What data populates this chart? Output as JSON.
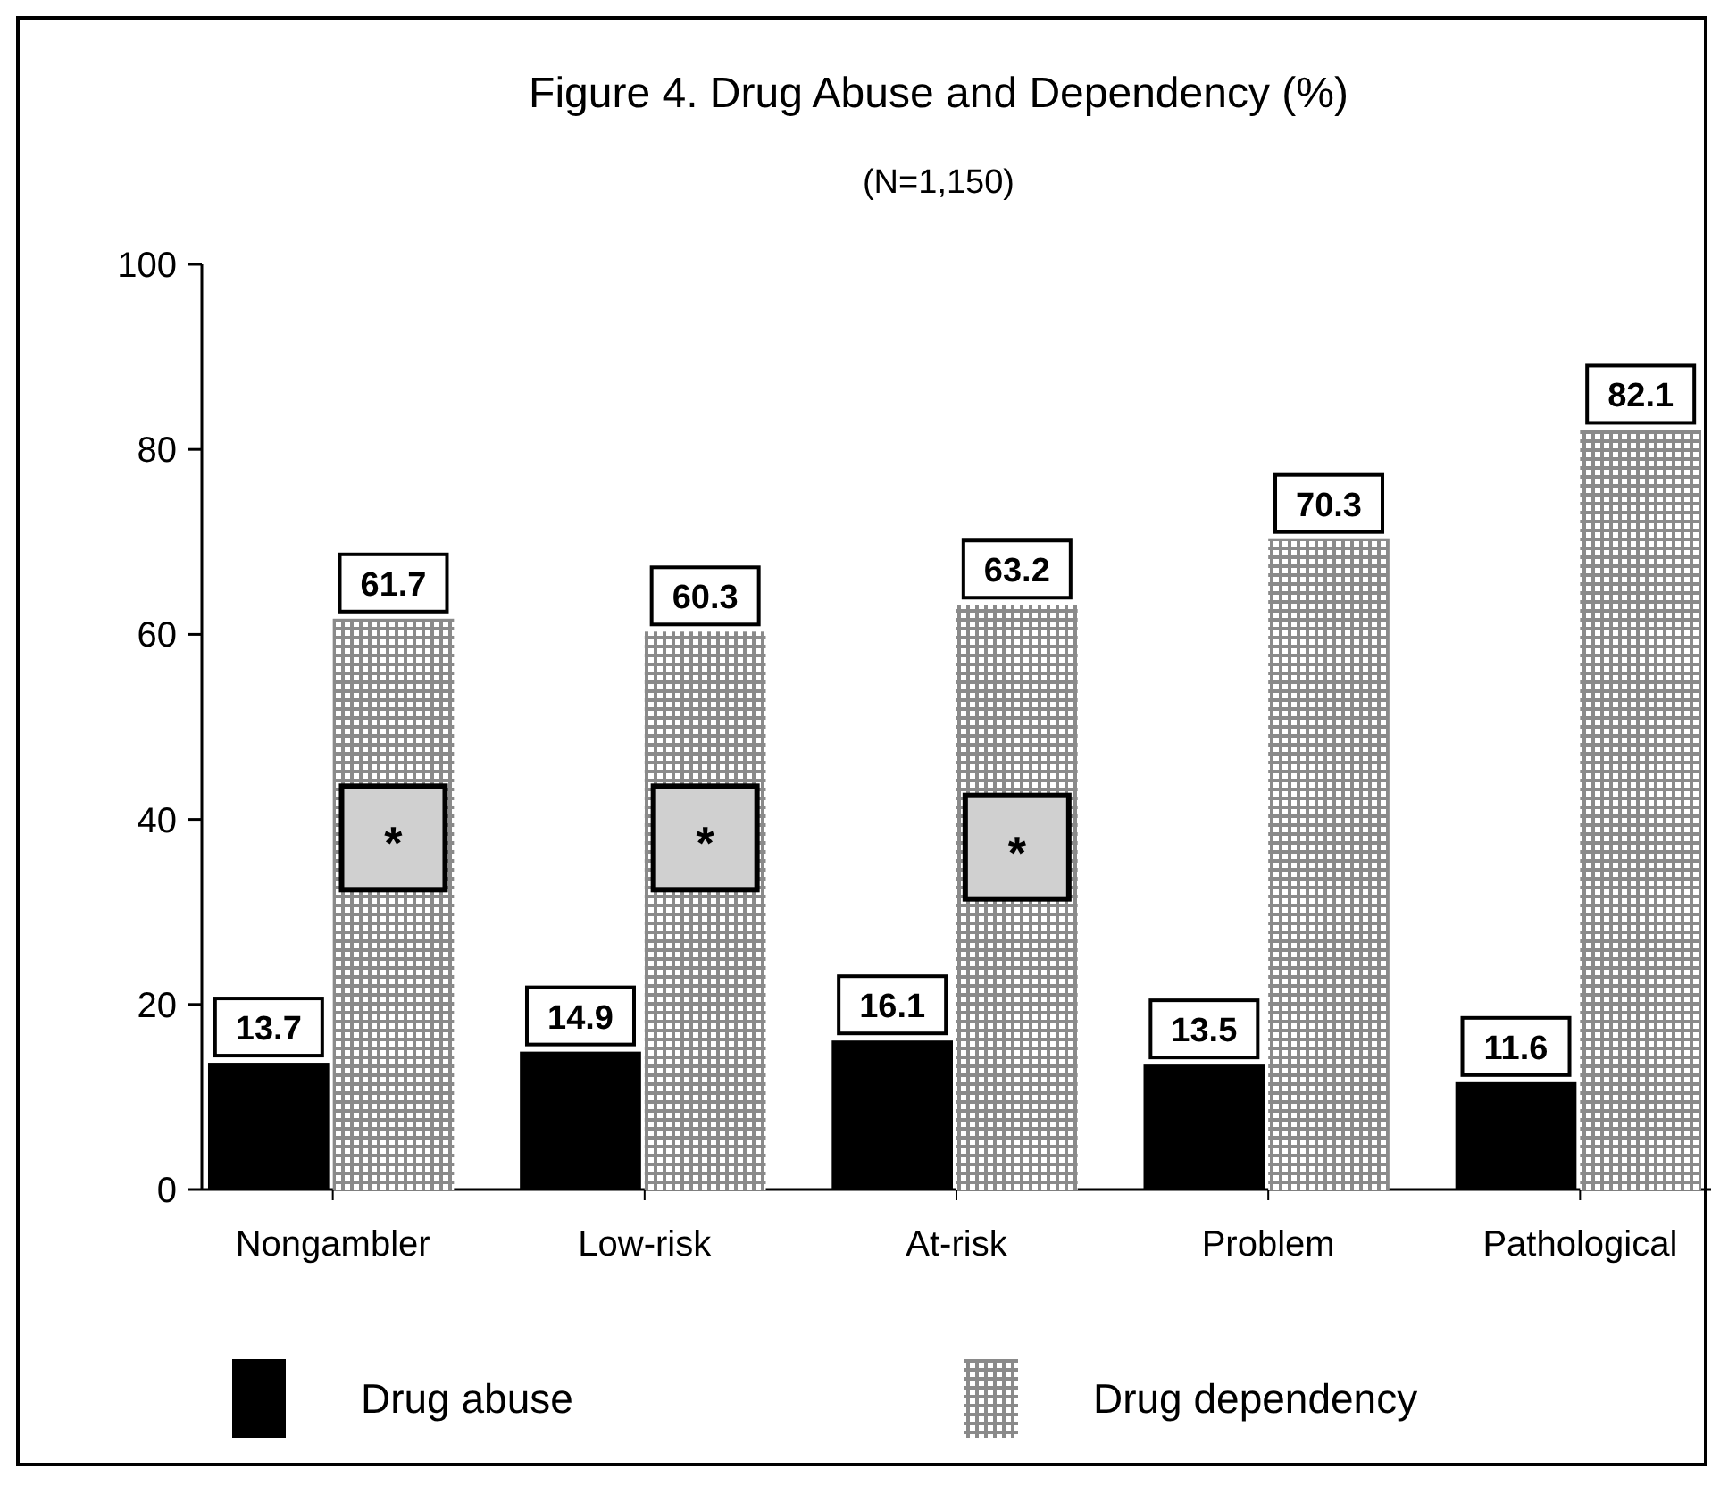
{
  "chart_data": {
    "type": "bar",
    "title": "Figure 4.  Drug Abuse and Dependency  (%)",
    "subtitle": "(N=1,150)",
    "categories": [
      "Nongambler",
      "Low-risk",
      "At-risk",
      "Problem",
      "Pathological"
    ],
    "series": [
      {
        "name": "Drug abuse",
        "color": "#000000",
        "values": [
          13.7,
          14.9,
          16.1,
          13.5,
          11.6
        ]
      },
      {
        "name": "Drug dependency",
        "color": "#8a8a8a",
        "values": [
          61.7,
          60.3,
          63.2,
          70.3,
          82.1
        ]
      }
    ],
    "ylim": [
      0,
      100
    ],
    "yticks": [
      0,
      20,
      40,
      60,
      80,
      100
    ],
    "grid": false,
    "legend": "bottom",
    "data_labels": true,
    "annotations": [
      {
        "text": "*",
        "x": "Nongambler",
        "y": 38
      },
      {
        "text": "*",
        "x": "Low-risk",
        "y": 38
      },
      {
        "text": "*",
        "x": "At-risk",
        "y": 37
      }
    ]
  }
}
